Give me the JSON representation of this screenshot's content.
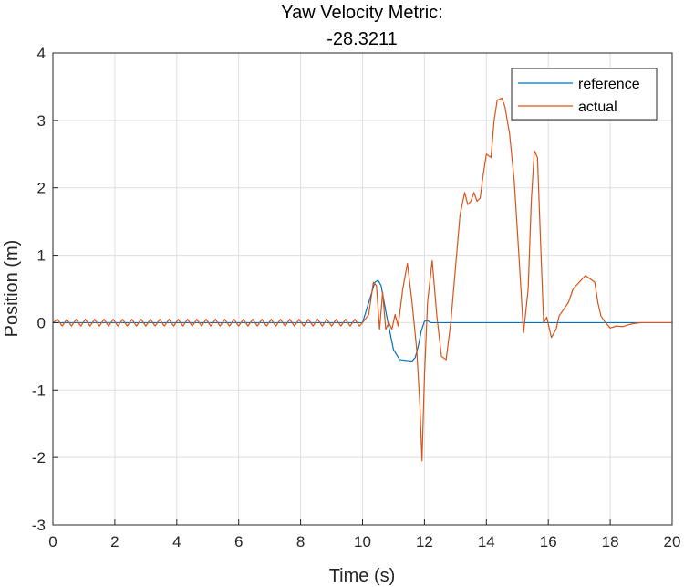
{
  "chart_data": {
    "type": "line",
    "title": [
      "Yaw Velocity Metric:",
      "-28.3211"
    ],
    "xlabel": "Time (s)",
    "ylabel": "Position (m)",
    "xlim": [
      0,
      20
    ],
    "ylim": [
      -3,
      4
    ],
    "xticks": [
      0,
      2,
      4,
      6,
      8,
      10,
      12,
      14,
      16,
      18,
      20
    ],
    "yticks": [
      -3,
      -2,
      -1,
      0,
      1,
      2,
      3,
      4
    ],
    "xtick_labels": [
      "0",
      "2",
      "4",
      "6",
      "8",
      "10",
      "12",
      "14",
      "16",
      "18",
      "20"
    ],
    "ytick_labels": [
      "-3",
      "-2",
      "-1",
      "0",
      "1",
      "2",
      "3",
      "4"
    ],
    "grid": true,
    "legend_position": "top-right",
    "series": [
      {
        "name": "reference",
        "color": "#0072BD",
        "x": [
          0,
          10.0,
          10.2,
          10.4,
          10.5,
          10.6,
          10.8,
          11.0,
          11.2,
          11.4,
          11.6,
          11.7,
          11.8,
          11.9,
          12.0,
          12.1,
          12.2,
          20.0
        ],
        "y": [
          0,
          0,
          0.3,
          0.6,
          0.63,
          0.55,
          0.05,
          -0.4,
          -0.55,
          -0.56,
          -0.57,
          -0.52,
          -0.35,
          -0.12,
          0.02,
          0.03,
          0.0,
          0.0
        ]
      },
      {
        "name": "actual",
        "color": "#D95319",
        "x": [
          0,
          0.15,
          0.3,
          0.45,
          0.6,
          0.75,
          0.9,
          1.05,
          1.2,
          1.35,
          1.5,
          1.65,
          1.8,
          1.95,
          2.1,
          2.25,
          2.4,
          2.55,
          2.7,
          2.85,
          3.0,
          3.15,
          3.3,
          3.45,
          3.6,
          3.75,
          3.9,
          4.05,
          4.2,
          4.35,
          4.5,
          4.65,
          4.8,
          4.95,
          5.1,
          5.25,
          5.4,
          5.55,
          5.7,
          5.85,
          6.0,
          6.15,
          6.3,
          6.45,
          6.6,
          6.75,
          6.9,
          7.05,
          7.2,
          7.35,
          7.5,
          7.65,
          7.8,
          7.95,
          8.1,
          8.25,
          8.4,
          8.55,
          8.7,
          8.85,
          9.0,
          9.15,
          9.3,
          9.45,
          9.6,
          9.75,
          9.9,
          10.0,
          10.2,
          10.35,
          10.45,
          10.55,
          10.65,
          10.75,
          10.85,
          10.95,
          11.05,
          11.15,
          11.3,
          11.45,
          11.6,
          11.75,
          11.85,
          11.92,
          12.0,
          12.1,
          12.25,
          12.4,
          12.55,
          12.7,
          12.85,
          13.0,
          13.15,
          13.3,
          13.4,
          13.5,
          13.6,
          13.7,
          13.8,
          13.9,
          14.0,
          14.15,
          14.25,
          14.35,
          14.5,
          14.6,
          14.75,
          14.9,
          15.05,
          15.2,
          15.35,
          15.45,
          15.55,
          15.65,
          15.75,
          15.85,
          15.95,
          16.1,
          16.25,
          16.35,
          16.5,
          16.65,
          16.8,
          17.0,
          17.2,
          17.35,
          17.5,
          17.6,
          17.7,
          17.85,
          18.0,
          18.2,
          18.4,
          18.6,
          18.8,
          19.0,
          19.5,
          20.0
        ],
        "y": [
          0,
          0.05,
          -0.05,
          0.05,
          -0.05,
          0.05,
          -0.05,
          0.05,
          -0.05,
          0.05,
          -0.05,
          0.05,
          -0.05,
          0.05,
          -0.05,
          0.05,
          -0.05,
          0.05,
          -0.05,
          0.05,
          -0.05,
          0.05,
          -0.05,
          0.05,
          -0.05,
          0.05,
          -0.05,
          0.05,
          -0.05,
          0.05,
          -0.05,
          0.05,
          -0.05,
          0.05,
          -0.05,
          0.05,
          -0.05,
          0.05,
          -0.05,
          0.05,
          -0.05,
          0.05,
          -0.05,
          0.05,
          -0.05,
          0.05,
          -0.05,
          0.05,
          -0.05,
          0.05,
          -0.05,
          0.05,
          -0.05,
          0.05,
          -0.05,
          0.05,
          -0.05,
          0.05,
          -0.05,
          0.05,
          -0.05,
          0.05,
          -0.05,
          0.05,
          -0.05,
          0.05,
          -0.05,
          0.0,
          0.12,
          0.6,
          0.55,
          -0.1,
          0.45,
          -0.1,
          0.0,
          -0.1,
          0.12,
          -0.05,
          0.5,
          0.88,
          0.3,
          -0.4,
          -1.2,
          -2.05,
          -0.8,
          0.3,
          0.92,
          0.1,
          -0.5,
          -0.55,
          0.0,
          0.8,
          1.6,
          1.93,
          1.75,
          1.8,
          1.93,
          1.8,
          1.85,
          2.2,
          2.5,
          2.45,
          3.0,
          3.3,
          3.33,
          3.2,
          2.8,
          2.1,
          1.0,
          -0.15,
          0.5,
          1.8,
          2.55,
          2.45,
          1.2,
          0.0,
          0.08,
          -0.22,
          -0.1,
          0.1,
          0.2,
          0.3,
          0.5,
          0.6,
          0.7,
          0.65,
          0.6,
          0.3,
          0.1,
          0.0,
          -0.08,
          -0.05,
          -0.06,
          -0.03,
          -0.01,
          0.0,
          0.0,
          0.0
        ]
      }
    ]
  }
}
